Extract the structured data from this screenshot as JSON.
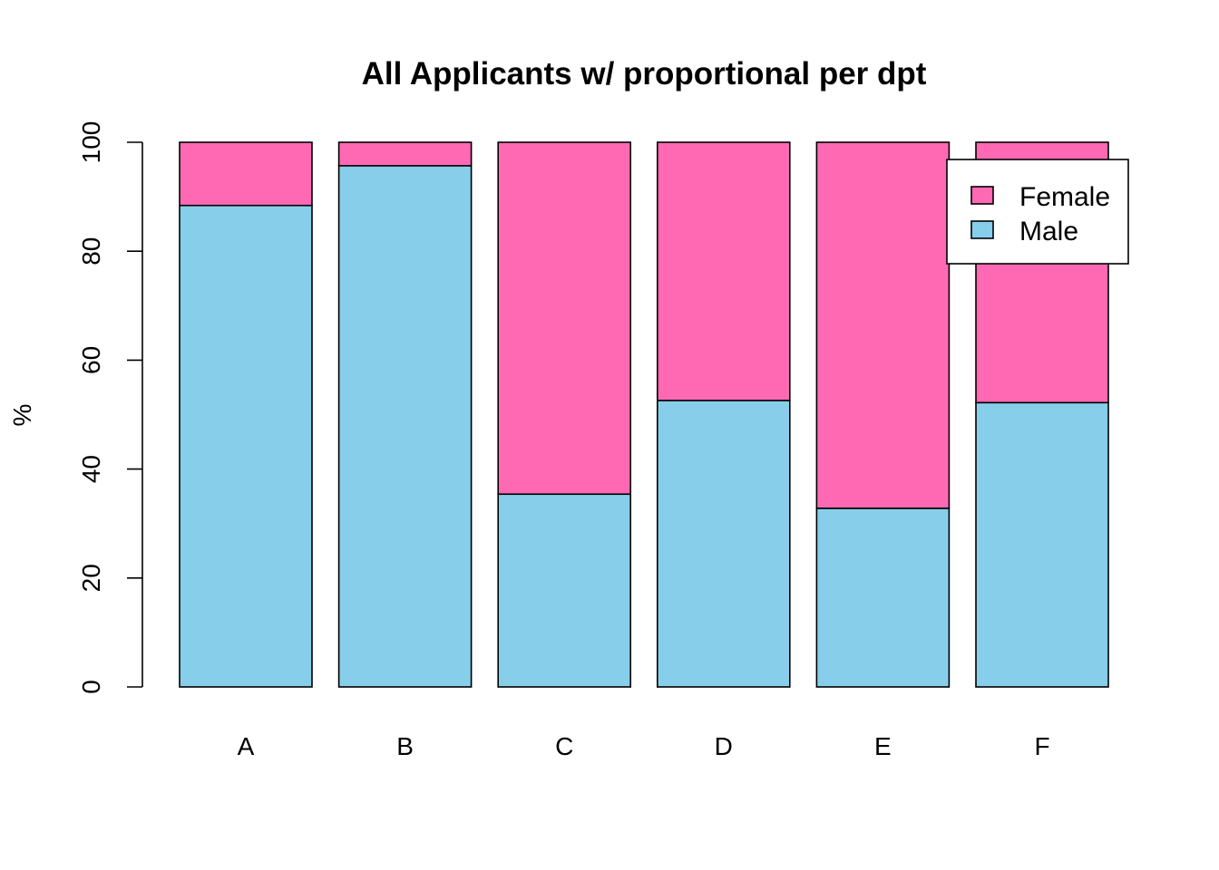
{
  "chart_data": {
    "type": "bar",
    "stacked": true,
    "title": "All Applicants w/ proportional per dpt",
    "xlabel": "",
    "ylabel": "%",
    "categories": [
      "A",
      "B",
      "C",
      "D",
      "E",
      "F"
    ],
    "series": [
      {
        "name": "Male",
        "color": "#87CEEB",
        "values": [
          88.4,
          95.7,
          35.4,
          52.6,
          32.8,
          52.2
        ]
      },
      {
        "name": "Female",
        "color": "#FF69B4",
        "values": [
          11.6,
          4.3,
          64.6,
          47.4,
          67.2,
          47.8
        ]
      }
    ],
    "ylim": [
      0,
      100
    ],
    "yticks": [
      0,
      20,
      40,
      60,
      80,
      100
    ],
    "grid": false,
    "legend": {
      "position": "top-right",
      "entries": [
        {
          "label": "Female",
          "color": "#FF69B4"
        },
        {
          "label": "Male",
          "color": "#87CEEB"
        }
      ]
    }
  }
}
